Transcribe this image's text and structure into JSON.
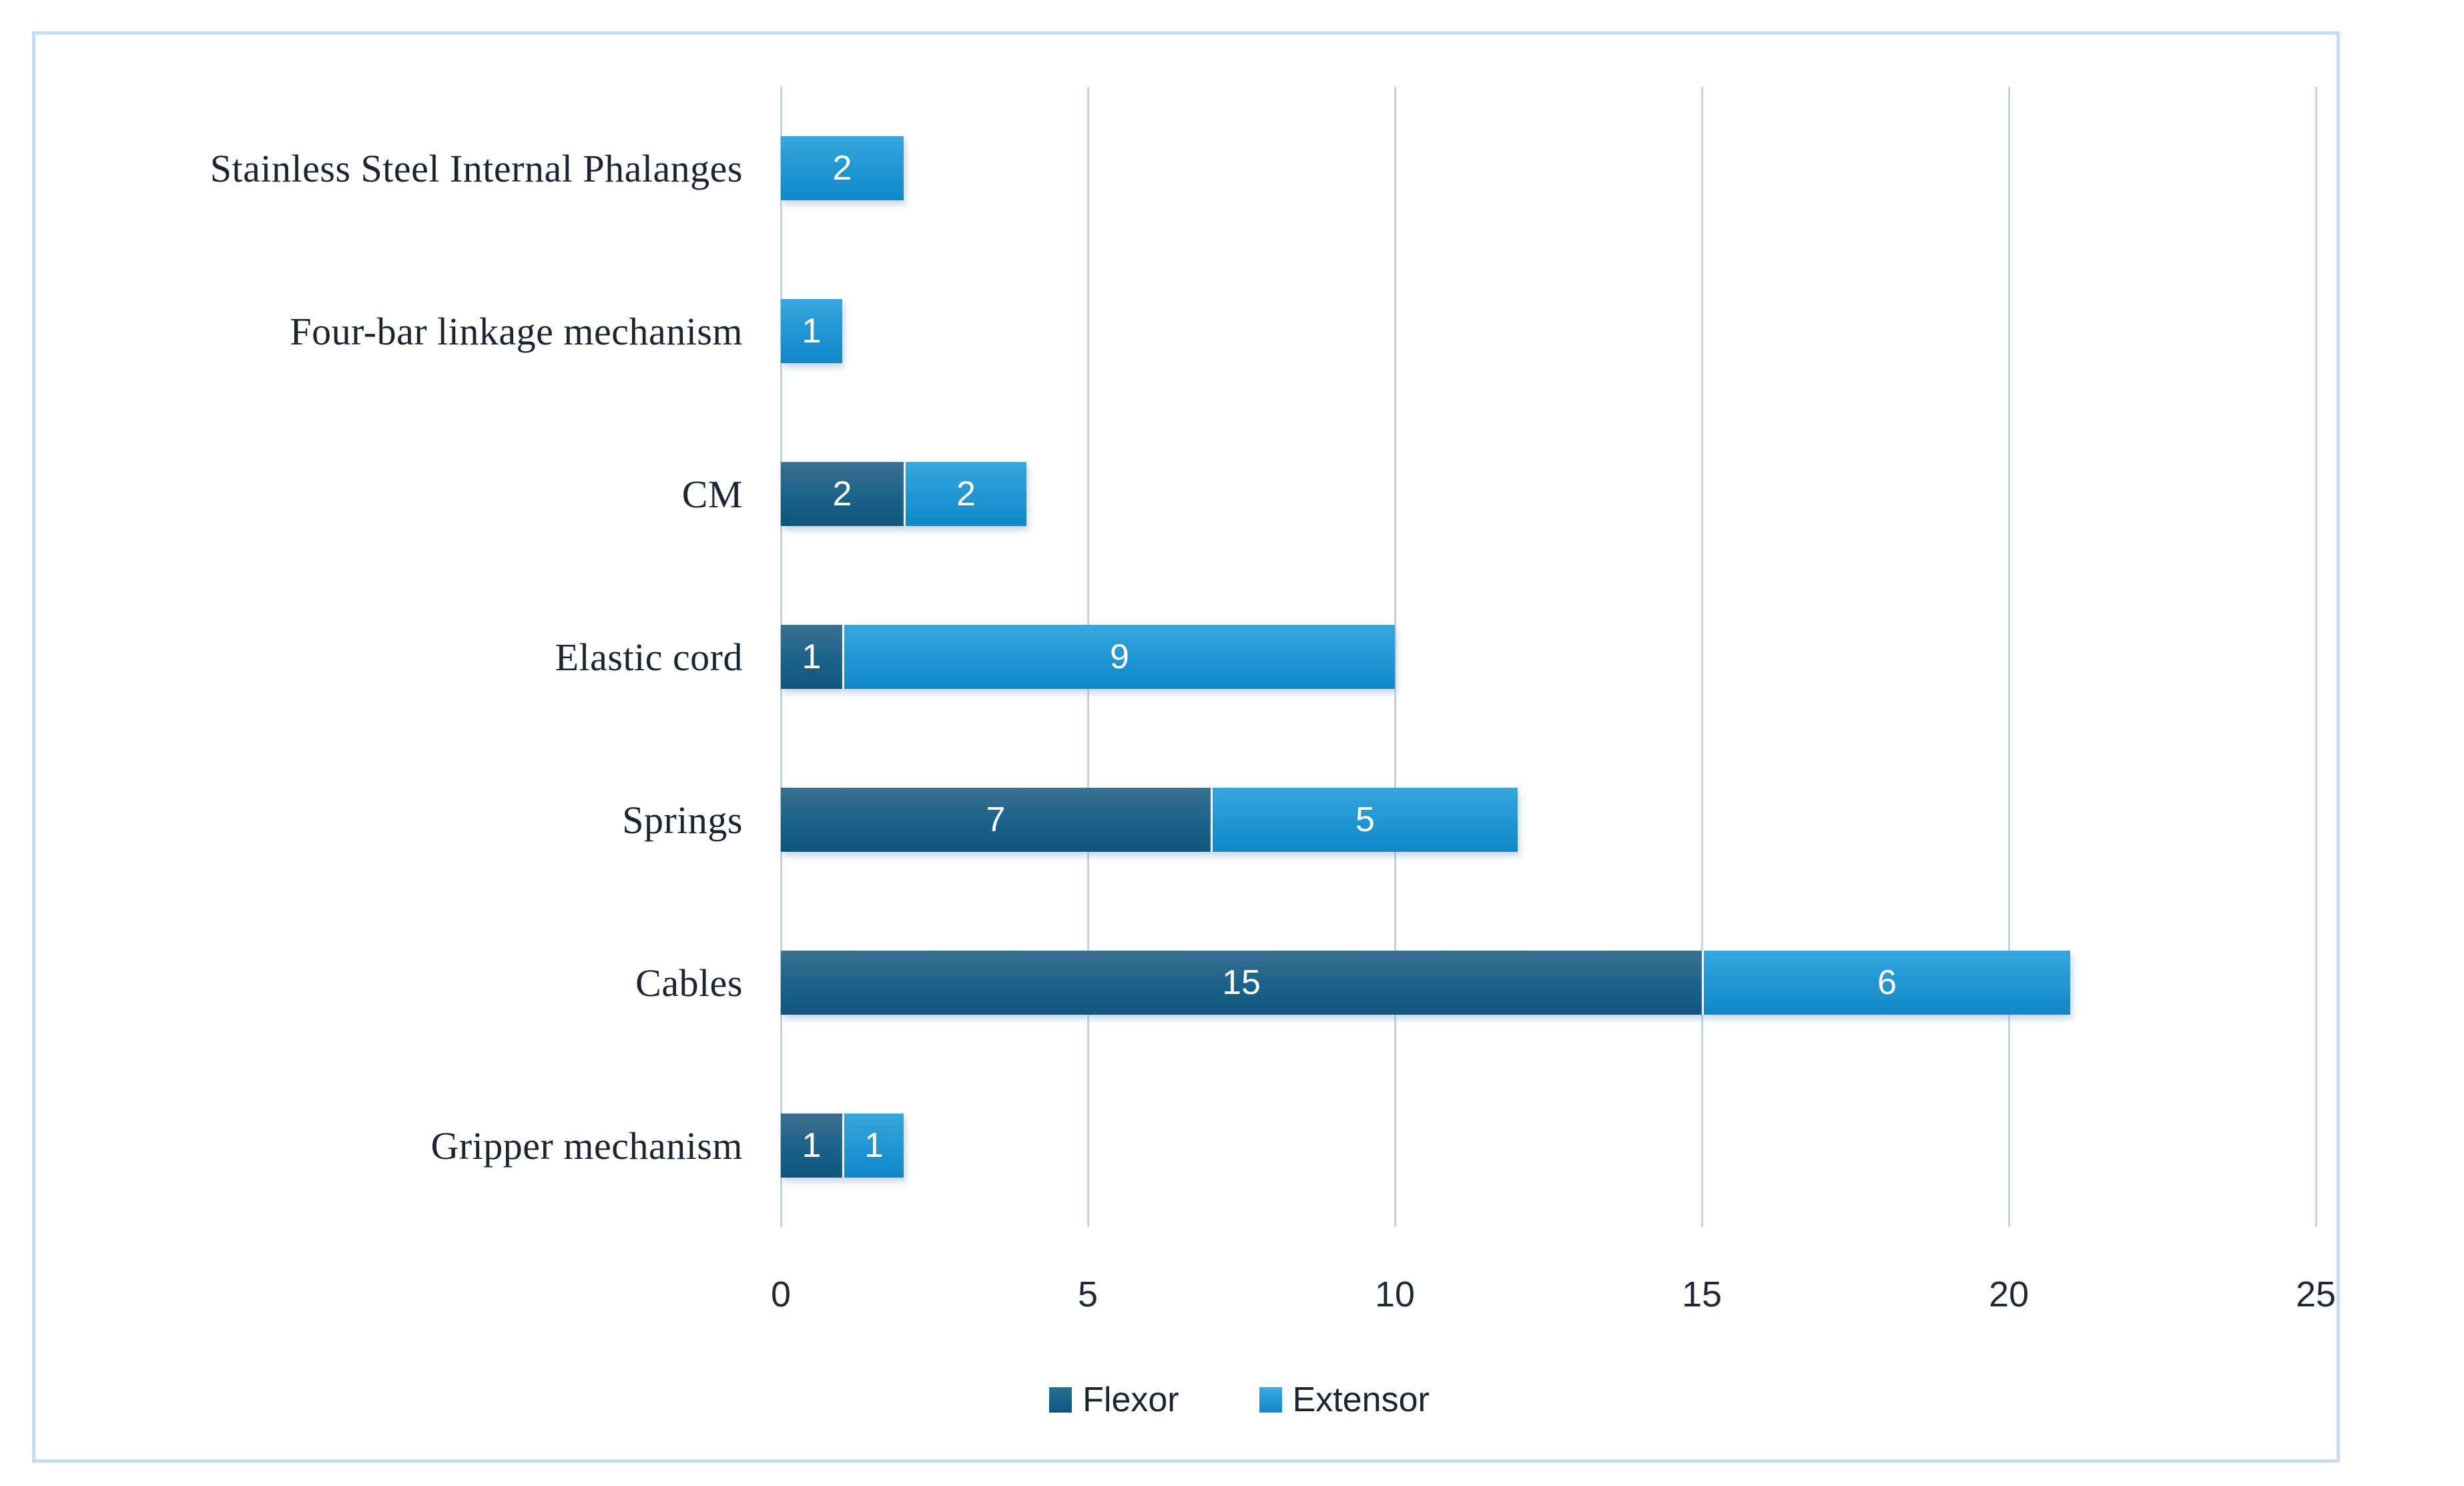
{
  "chart_data": {
    "type": "bar",
    "orientation": "horizontal-stacked",
    "title": "",
    "xlabel": "",
    "ylabel": "",
    "categories": [
      "Stainless Steel Internal Phalanges",
      "Four-bar linkage mechanism",
      "CM",
      "Elastic cord",
      "Springs",
      "Cables",
      "Gripper mechanism"
    ],
    "series": [
      {
        "name": "Flexor",
        "values": [
          0,
          0,
          2,
          1,
          7,
          15,
          1
        ],
        "color": "#15607f"
      },
      {
        "name": "Extensor",
        "values": [
          2,
          1,
          2,
          9,
          5,
          6,
          1
        ],
        "color": "#2198d4"
      }
    ],
    "xlim": [
      0,
      25
    ],
    "xticks": [
      0,
      5,
      10,
      15,
      20,
      25
    ],
    "grid": "vertical-only",
    "legend_position": "bottom-center",
    "data_labels": "values shown in white inside each segment"
  },
  "style": {
    "frame_border_color": "#c8dcf0",
    "gridline_color": "#bad6ec",
    "category_text_color": "#1b2433",
    "tick_text_color": "#1f2937",
    "value_label_color": "#ffffff"
  }
}
